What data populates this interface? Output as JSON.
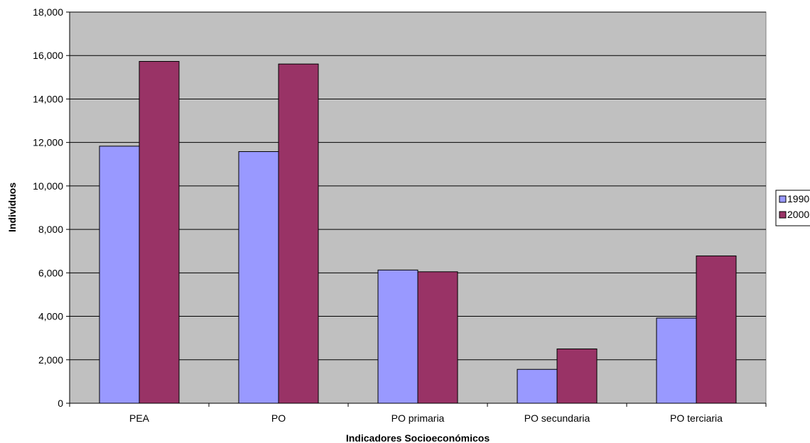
{
  "chart_data": {
    "type": "bar",
    "title": "",
    "xlabel": "Indicadores Socioeconómicos",
    "ylabel": "Individuos",
    "categories": [
      "PEA",
      "PO",
      "PO primaria",
      "PO secundaria",
      "PO terciaria"
    ],
    "series": [
      {
        "name": "1990",
        "values": [
          11830,
          11580,
          6130,
          1560,
          3920
        ],
        "color": "#9999ff"
      },
      {
        "name": "2000",
        "values": [
          15730,
          15610,
          6050,
          2500,
          6780
        ],
        "color": "#993366"
      }
    ],
    "ylim": [
      0,
      18000
    ],
    "yticks": [
      0,
      2000,
      4000,
      6000,
      8000,
      10000,
      12000,
      14000,
      16000,
      18000
    ],
    "ytick_labels": [
      "0",
      "2,000",
      "4,000",
      "6,000",
      "8,000",
      "10,000",
      "12,000",
      "14,000",
      "16,000",
      "18,000"
    ],
    "grid": true,
    "legend_position": "right",
    "plot_background": "#c0c0c0"
  }
}
